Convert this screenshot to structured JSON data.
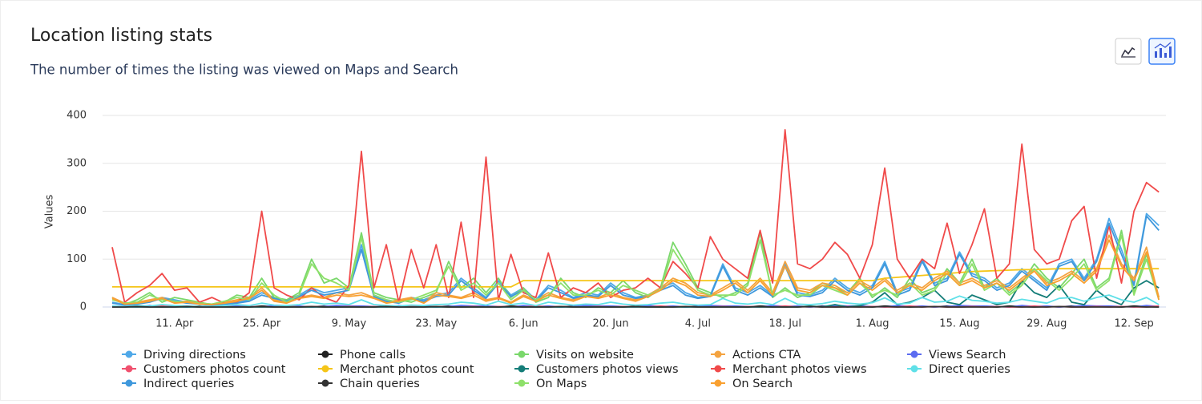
{
  "chart_data": {
    "type": "line",
    "title": "Location listing stats",
    "subtitle": "The number of times the listing was viewed on Maps and Search",
    "ylabel": "Values",
    "ylim": [
      0,
      400
    ],
    "yticks": [
      0,
      100,
      200,
      300,
      400
    ],
    "grid": true,
    "categories": [
      null,
      null,
      null,
      null,
      null,
      "11. Apr",
      null,
      null,
      null,
      null,
      null,
      null,
      "25. Apr",
      null,
      null,
      null,
      null,
      null,
      null,
      "9. May",
      null,
      null,
      null,
      null,
      null,
      null,
      "23. May",
      null,
      null,
      null,
      null,
      null,
      null,
      "6. Jun",
      null,
      null,
      null,
      null,
      null,
      null,
      "20. Jun",
      null,
      null,
      null,
      null,
      null,
      null,
      "4. Jul",
      null,
      null,
      null,
      null,
      null,
      null,
      "18. Jul",
      null,
      null,
      null,
      null,
      null,
      null,
      "1. Aug",
      null,
      null,
      null,
      null,
      null,
      null,
      "15. Aug",
      null,
      null,
      null,
      null,
      null,
      null,
      "29. Aug",
      null,
      null,
      null,
      null,
      null,
      null,
      "12. Sep",
      null,
      null
    ],
    "series": [
      {
        "name": "Driving directions",
        "color": "#4fa8e8",
        "values": [
          10,
          5,
          8,
          12,
          20,
          15,
          10,
          8,
          5,
          8,
          10,
          15,
          30,
          20,
          15,
          25,
          40,
          30,
          35,
          40,
          130,
          25,
          15,
          10,
          20,
          15,
          25,
          30,
          60,
          40,
          20,
          55,
          25,
          40,
          15,
          45,
          35,
          20,
          30,
          25,
          50,
          30,
          20,
          25,
          40,
          50,
          30,
          20,
          25,
          90,
          40,
          30,
          45,
          25,
          90,
          30,
          25,
          35,
          60,
          40,
          30,
          45,
          95,
          30,
          40,
          100,
          50,
          60,
          115,
          70,
          60,
          40,
          50,
          80,
          60,
          40,
          90,
          100,
          60,
          100,
          185,
          120,
          50,
          195,
          170
        ]
      },
      {
        "name": "Phone calls",
        "color": "#222222",
        "values": [
          1,
          0,
          2,
          1,
          0,
          1,
          0,
          2,
          0,
          1,
          1,
          0,
          2,
          1,
          0,
          1,
          0,
          2,
          0,
          1,
          1,
          0,
          2,
          1,
          0,
          1,
          0,
          2,
          0,
          1,
          1,
          0,
          2,
          1,
          0,
          1,
          0,
          2,
          0,
          1,
          1,
          0,
          2,
          1,
          0,
          1,
          0,
          2,
          0,
          1,
          1,
          0,
          2,
          1,
          0,
          1,
          0,
          2,
          0,
          1,
          1,
          0,
          2,
          1,
          0,
          1,
          0,
          2,
          0,
          1,
          1,
          0,
          2,
          1,
          0,
          1,
          0,
          2,
          0,
          1,
          1,
          0,
          2,
          1,
          0
        ]
      },
      {
        "name": "Visits on website",
        "color": "#7ad86b",
        "values": [
          20,
          5,
          15,
          30,
          10,
          20,
          15,
          10,
          5,
          10,
          25,
          20,
          60,
          20,
          15,
          30,
          100,
          50,
          60,
          40,
          155,
          30,
          20,
          15,
          10,
          20,
          30,
          95,
          40,
          60,
          30,
          60,
          20,
          40,
          10,
          20,
          60,
          30,
          20,
          40,
          30,
          55,
          30,
          20,
          40,
          135,
          90,
          40,
          30,
          20,
          30,
          50,
          155,
          20,
          40,
          20,
          30,
          50,
          40,
          30,
          60,
          20,
          40,
          20,
          60,
          30,
          40,
          80,
          50,
          100,
          40,
          60,
          30,
          50,
          90,
          60,
          40,
          70,
          100,
          40,
          60,
          160,
          30,
          110,
          20
        ]
      },
      {
        "name": "Actions CTA",
        "color": "#f4a340",
        "values": [
          20,
          8,
          10,
          15,
          20,
          10,
          12,
          8,
          6,
          10,
          15,
          20,
          40,
          15,
          10,
          20,
          25,
          20,
          30,
          25,
          30,
          20,
          10,
          15,
          20,
          10,
          30,
          25,
          20,
          30,
          15,
          20,
          10,
          25,
          15,
          30,
          20,
          15,
          25,
          20,
          30,
          20,
          15,
          25,
          40,
          60,
          50,
          30,
          25,
          40,
          55,
          35,
          60,
          30,
          95,
          40,
          35,
          50,
          45,
          30,
          55,
          40,
          60,
          35,
          50,
          40,
          60,
          75,
          50,
          60,
          45,
          55,
          40,
          60,
          80,
          50,
          60,
          75,
          55,
          80,
          150,
          90,
          60,
          125,
          20
        ]
      },
      {
        "name": "Views Search",
        "color": "#5b6cf0",
        "values": [
          2,
          1,
          0,
          3,
          1,
          2,
          0,
          1,
          3,
          2,
          2,
          1,
          0,
          3,
          1,
          2,
          0,
          1,
          3,
          2,
          2,
          1,
          0,
          3,
          1,
          2,
          0,
          1,
          3,
          2,
          2,
          1,
          0,
          3,
          1,
          2,
          0,
          1,
          3,
          2,
          2,
          1,
          0,
          3,
          1,
          2,
          0,
          1,
          3,
          2,
          2,
          1,
          0,
          3,
          1,
          2,
          0,
          1,
          3,
          2,
          2,
          1,
          0,
          3,
          1,
          2,
          0,
          1,
          3,
          2,
          2,
          1,
          0,
          3,
          1,
          2,
          0,
          1,
          3,
          2,
          2,
          1,
          0,
          3,
          1
        ]
      },
      {
        "name": "Customers photos count",
        "color": "#f0506e",
        "values": [
          0,
          1,
          0,
          0,
          2,
          0,
          1,
          0,
          0,
          1,
          0,
          1,
          0,
          0,
          2,
          0,
          1,
          0,
          0,
          1,
          0,
          1,
          0,
          0,
          2,
          0,
          1,
          0,
          0,
          1,
          0,
          1,
          0,
          0,
          2,
          0,
          1,
          0,
          0,
          1,
          0,
          1,
          0,
          0,
          2,
          0,
          1,
          0,
          0,
          1,
          0,
          1,
          0,
          0,
          2,
          0,
          1,
          0,
          0,
          1,
          0,
          1,
          0,
          0,
          2,
          0,
          1,
          0,
          0,
          1,
          0,
          1,
          0,
          0,
          2,
          0,
          1,
          0,
          0,
          1,
          0,
          1,
          0,
          0,
          2
        ]
      },
      {
        "name": "Merchant photos count",
        "color": "#f5c518",
        "values": [
          42,
          42,
          42,
          42,
          42,
          42,
          42,
          42,
          42,
          42,
          42,
          42,
          42,
          42,
          42,
          42,
          42,
          42,
          42,
          42,
          42,
          42,
          42,
          42,
          42,
          42,
          42,
          42,
          42,
          42,
          42,
          42,
          42,
          55,
          55,
          55,
          55,
          55,
          55,
          55,
          55,
          55,
          55,
          55,
          55,
          55,
          55,
          55,
          55,
          55,
          55,
          55,
          55,
          55,
          55,
          55,
          55,
          55,
          55,
          55,
          55,
          55,
          60,
          62,
          64,
          66,
          68,
          70,
          72,
          74,
          75,
          76,
          77,
          78,
          78,
          79,
          80,
          80,
          80,
          80,
          80,
          80,
          80,
          80,
          80
        ]
      },
      {
        "name": "Customers photos views",
        "color": "#147d78",
        "values": [
          0,
          0,
          0,
          0,
          0,
          0,
          0,
          0,
          0,
          0,
          0,
          0,
          0,
          0,
          0,
          0,
          0,
          0,
          0,
          0,
          0,
          0,
          0,
          0,
          0,
          0,
          0,
          0,
          0,
          0,
          0,
          0,
          0,
          0,
          0,
          0,
          0,
          0,
          0,
          0,
          0,
          0,
          0,
          0,
          0,
          0,
          0,
          0,
          0,
          0,
          0,
          0,
          0,
          0,
          0,
          0,
          2,
          0,
          5,
          0,
          3,
          10,
          30,
          5,
          10,
          20,
          35,
          10,
          5,
          25,
          15,
          5,
          10,
          55,
          30,
          20,
          45,
          10,
          5,
          35,
          15,
          5,
          40,
          55,
          40
        ]
      },
      {
        "name": "Merchant photos views",
        "color": "#f04a4a",
        "values": [
          125,
          10,
          30,
          45,
          70,
          35,
          40,
          10,
          20,
          8,
          10,
          30,
          200,
          40,
          25,
          15,
          40,
          20,
          10,
          45,
          325,
          40,
          130,
          10,
          120,
          40,
          130,
          20,
          177,
          20,
          313,
          15,
          110,
          30,
          20,
          113,
          20,
          40,
          30,
          50,
          20,
          35,
          40,
          60,
          40,
          95,
          70,
          40,
          147,
          100,
          80,
          60,
          160,
          50,
          370,
          90,
          80,
          100,
          135,
          110,
          60,
          130,
          290,
          100,
          60,
          100,
          80,
          175,
          70,
          130,
          205,
          60,
          90,
          340,
          120,
          90,
          100,
          180,
          210,
          60,
          170,
          50,
          200,
          260,
          240
        ]
      },
      {
        "name": "Direct queries",
        "color": "#5fe0e8",
        "values": [
          2,
          1,
          3,
          2,
          5,
          3,
          2,
          1,
          2,
          3,
          5,
          3,
          8,
          4,
          3,
          5,
          10,
          6,
          8,
          5,
          15,
          5,
          3,
          2,
          4,
          3,
          5,
          6,
          10,
          8,
          4,
          12,
          5,
          8,
          3,
          10,
          7,
          4,
          6,
          5,
          10,
          6,
          4,
          5,
          8,
          10,
          6,
          4,
          5,
          18,
          8,
          6,
          9,
          5,
          18,
          6,
          5,
          7,
          12,
          8,
          6,
          9,
          19,
          6,
          8,
          20,
          10,
          12,
          23,
          14,
          12,
          8,
          10,
          16,
          12,
          8,
          18,
          20,
          12,
          20,
          25,
          15,
          10,
          20,
          5
        ]
      },
      {
        "name": "Indirect queries",
        "color": "#3f98dc",
        "values": [
          8,
          4,
          6,
          10,
          18,
          12,
          8,
          6,
          4,
          6,
          8,
          12,
          25,
          18,
          12,
          22,
          35,
          25,
          30,
          35,
          120,
          22,
          12,
          8,
          18,
          12,
          22,
          25,
          55,
          35,
          18,
          50,
          22,
          35,
          12,
          40,
          30,
          18,
          25,
          22,
          45,
          25,
          18,
          22,
          35,
          45,
          25,
          18,
          22,
          85,
          35,
          25,
          40,
          22,
          85,
          25,
          22,
          30,
          55,
          35,
          25,
          40,
          90,
          25,
          35,
          95,
          45,
          55,
          110,
          65,
          55,
          35,
          45,
          75,
          55,
          35,
          85,
          95,
          55,
          95,
          175,
          110,
          45,
          190,
          160
        ]
      },
      {
        "name": "Chain queries",
        "color": "#333333",
        "values": [
          0,
          0,
          1,
          0,
          0,
          0,
          1,
          0,
          0,
          0,
          0,
          0,
          1,
          0,
          0,
          0,
          1,
          0,
          0,
          0,
          0,
          0,
          1,
          0,
          0,
          0,
          1,
          0,
          0,
          0,
          0,
          0,
          1,
          0,
          0,
          0,
          1,
          0,
          0,
          0,
          0,
          0,
          1,
          0,
          0,
          0,
          1,
          0,
          0,
          0,
          0,
          0,
          1,
          0,
          0,
          0,
          1,
          0,
          0,
          0,
          0,
          0,
          1,
          0,
          0,
          0,
          1,
          0,
          0,
          0,
          0,
          0,
          1,
          0,
          0,
          0,
          1,
          0,
          0,
          0,
          0,
          0,
          1,
          0,
          0
        ]
      },
      {
        "name": "On Maps",
        "color": "#8ee06a",
        "values": [
          15,
          8,
          10,
          25,
          15,
          12,
          10,
          8,
          6,
          12,
          20,
          15,
          50,
          25,
          10,
          25,
          90,
          60,
          50,
          35,
          145,
          25,
          15,
          10,
          15,
          25,
          35,
          85,
          35,
          50,
          25,
          50,
          15,
          35,
          15,
          25,
          50,
          25,
          25,
          35,
          25,
          45,
          35,
          25,
          35,
          120,
          80,
          35,
          25,
          25,
          25,
          45,
          140,
          25,
          35,
          25,
          25,
          45,
          35,
          25,
          50,
          25,
          35,
          25,
          50,
          25,
          35,
          70,
          45,
          90,
          35,
          50,
          25,
          45,
          80,
          55,
          35,
          60,
          90,
          35,
          55,
          150,
          25,
          100,
          15
        ]
      },
      {
        "name": "On Search",
        "color": "#f9a030",
        "values": [
          18,
          6,
          8,
          12,
          18,
          8,
          10,
          6,
          5,
          8,
          12,
          18,
          35,
          12,
          8,
          18,
          22,
          18,
          25,
          22,
          25,
          18,
          8,
          12,
          18,
          8,
          25,
          22,
          18,
          25,
          12,
          18,
          8,
          22,
          12,
          25,
          18,
          12,
          22,
          18,
          25,
          18,
          12,
          22,
          35,
          55,
          45,
          25,
          22,
          35,
          50,
          30,
          55,
          25,
          85,
          35,
          30,
          45,
          40,
          25,
          50,
          35,
          55,
          30,
          45,
          35,
          55,
          70,
          45,
          55,
          40,
          50,
          35,
          55,
          75,
          45,
          55,
          70,
          50,
          75,
          140,
          85,
          55,
          115,
          15
        ]
      }
    ]
  }
}
